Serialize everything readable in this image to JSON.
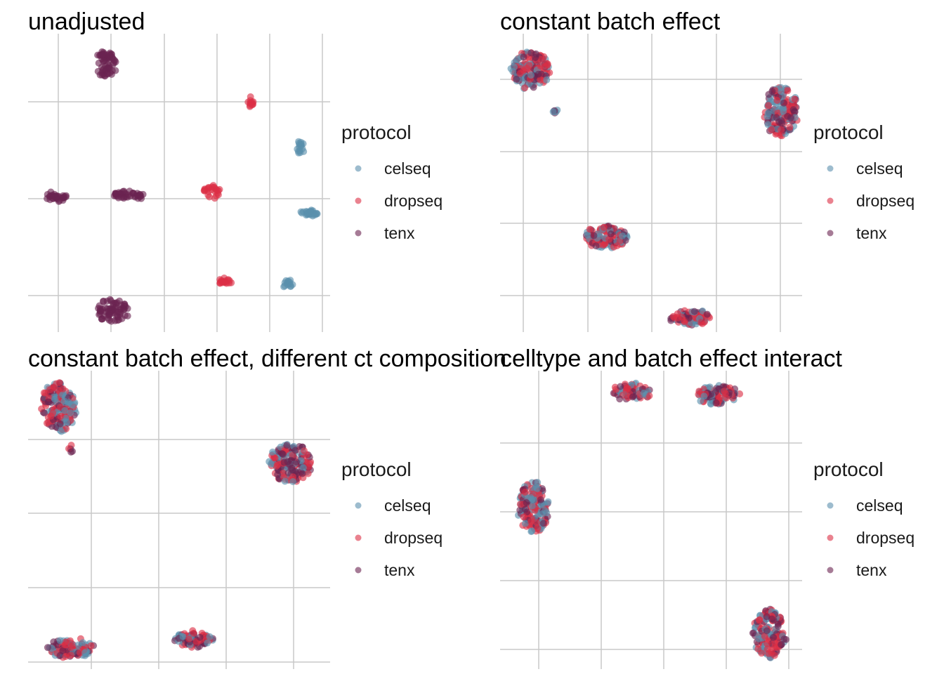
{
  "colors": {
    "celseq": "#5b8fad",
    "dropseq": "#dc2f45",
    "tenx": "#6b2350",
    "grid": "#c9c9c9"
  },
  "legend": {
    "title": "protocol",
    "entries": [
      "celseq",
      "dropseq",
      "tenx"
    ]
  },
  "chart_data": [
    {
      "type": "scatter",
      "title": "unadjusted",
      "xlabel": "",
      "ylabel": "",
      "xlim": [
        0,
        100
      ],
      "ylim": [
        0,
        100
      ],
      "grid": true,
      "legend_position": "right",
      "clusters": [
        {
          "series": "tenx",
          "x": 26,
          "y": 90,
          "rx": 3.5,
          "ry": 4.5,
          "n": 60
        },
        {
          "series": "dropseq",
          "x": 74,
          "y": 77,
          "rx": 1.0,
          "ry": 1.4,
          "n": 12
        },
        {
          "series": "celseq",
          "x": 90,
          "y": 62,
          "rx": 1.2,
          "ry": 2.2,
          "n": 16
        },
        {
          "series": "tenx",
          "x": 9,
          "y": 45,
          "rx": 4.5,
          "ry": 1.2,
          "n": 30
        },
        {
          "series": "tenx",
          "x": 33,
          "y": 46,
          "rx": 5.0,
          "ry": 1.0,
          "n": 40
        },
        {
          "series": "dropseq",
          "x": 61,
          "y": 47,
          "rx": 3.0,
          "ry": 2.2,
          "n": 24
        },
        {
          "series": "celseq",
          "x": 93,
          "y": 40,
          "rx": 3.0,
          "ry": 0.9,
          "n": 26
        },
        {
          "series": "dropseq",
          "x": 65,
          "y": 17,
          "rx": 2.0,
          "ry": 0.8,
          "n": 18
        },
        {
          "series": "celseq",
          "x": 86,
          "y": 16,
          "rx": 1.8,
          "ry": 1.2,
          "n": 14
        },
        {
          "series": "tenx",
          "x": 28,
          "y": 7,
          "rx": 5.0,
          "ry": 4.0,
          "n": 70
        }
      ]
    },
    {
      "type": "scatter",
      "title": "constant batch effect",
      "xlabel": "",
      "ylabel": "",
      "xlim": [
        0,
        100
      ],
      "ylim": [
        0,
        100
      ],
      "grid": true,
      "legend_position": "right",
      "clusters": [
        {
          "series": "mixed",
          "x": 10,
          "y": 88,
          "rx": 6.5,
          "ry": 6.0,
          "n": 170
        },
        {
          "series": "mixed",
          "x": 18,
          "y": 74,
          "rx": 1.0,
          "ry": 0.8,
          "n": 6
        },
        {
          "series": "mixed",
          "x": 93,
          "y": 74,
          "rx": 5.5,
          "ry": 8.5,
          "n": 170
        },
        {
          "series": "mixed",
          "x": 35,
          "y": 32,
          "rx": 7.0,
          "ry": 4.0,
          "n": 120
        },
        {
          "series": "mixed",
          "x": 63,
          "y": 5,
          "rx": 6.5,
          "ry": 2.5,
          "n": 90
        }
      ]
    },
    {
      "type": "scatter",
      "title": "constant batch effect, different ct composition",
      "xlabel": "",
      "ylabel": "",
      "xlim": [
        0,
        100
      ],
      "ylim": [
        0,
        100
      ],
      "grid": true,
      "legend_position": "right",
      "clusters": [
        {
          "series": "mixed",
          "x": 10,
          "y": 88,
          "rx": 5.5,
          "ry": 8.5,
          "n": 170
        },
        {
          "series": "mixed",
          "x": 14,
          "y": 74,
          "rx": 0.8,
          "ry": 1.2,
          "n": 5
        },
        {
          "series": "mixed",
          "x": 87,
          "y": 69,
          "rx": 7.0,
          "ry": 6.5,
          "n": 190
        },
        {
          "series": "mixed",
          "x": 14,
          "y": 7,
          "rx": 8.0,
          "ry": 3.0,
          "n": 110
        },
        {
          "series": "mixed",
          "x": 55,
          "y": 10,
          "rx": 6.5,
          "ry": 2.5,
          "n": 80
        }
      ]
    },
    {
      "type": "scatter",
      "title": "celltype and batch effect interact",
      "xlabel": "",
      "ylabel": "",
      "xlim": [
        0,
        100
      ],
      "ylim": [
        0,
        100
      ],
      "grid": true,
      "legend_position": "right",
      "clusters": [
        {
          "series": "mixed",
          "x": 44,
          "y": 93,
          "rx": 6.5,
          "ry": 2.5,
          "n": 80
        },
        {
          "series": "mixed",
          "x": 72,
          "y": 92,
          "rx": 7.0,
          "ry": 3.0,
          "n": 110
        },
        {
          "series": "mixed",
          "x": 11,
          "y": 54,
          "rx": 5.0,
          "ry": 9.0,
          "n": 170
        },
        {
          "series": "mixed",
          "x": 89,
          "y": 12,
          "rx": 5.0,
          "ry": 8.0,
          "n": 150
        }
      ]
    }
  ]
}
